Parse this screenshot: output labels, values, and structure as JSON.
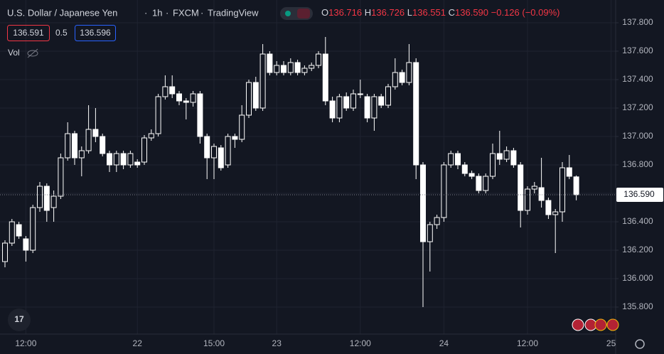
{
  "chart_data": {
    "type": "candlestick",
    "title": "U.S. Dollar / Japanese Yen",
    "interval": "1h",
    "source": "FXCM",
    "platform": "TradingView",
    "ohlc_header": [
      {
        "key": "O",
        "value": "136.716"
      },
      {
        "key": "H",
        "value": "136.726"
      },
      {
        "key": "L",
        "value": "136.551"
      },
      {
        "key": "C",
        "value": "136.590"
      }
    ],
    "change": "−0.126 (−0.09%)",
    "bid": "136.591",
    "spread": "0.5",
    "ask": "136.596",
    "volume_label": "Vol",
    "last_price": {
      "value": 136.59,
      "label": "136.590"
    },
    "categories": [
      null,
      null,
      null,
      "12:00",
      null,
      null,
      null,
      null,
      null,
      null,
      null,
      null,
      null,
      null,
      null,
      null,
      null,
      null,
      null,
      "22",
      null,
      null,
      null,
      null,
      null,
      null,
      null,
      null,
      null,
      null,
      "15:00",
      null,
      null,
      null,
      null,
      null,
      null,
      null,
      null,
      "23",
      null,
      null,
      null,
      null,
      null,
      null,
      null,
      null,
      null,
      null,
      null,
      "12:00",
      null,
      null,
      null,
      null,
      null,
      null,
      null,
      null,
      null,
      null,
      null,
      "24",
      null,
      null,
      null,
      null,
      null,
      null,
      null,
      null,
      null,
      null,
      null,
      "12:00",
      null,
      null,
      null,
      null,
      null,
      null,
      null,
      null,
      null,
      null,
      null,
      "25"
    ],
    "open": [
      136.12,
      136.25,
      136.38,
      136.28,
      136.2,
      136.5,
      136.65,
      136.5,
      136.58,
      136.85,
      137.02,
      136.85,
      136.9,
      137.05,
      137.0,
      136.88,
      136.8,
      136.88,
      136.8,
      136.82,
      136.82,
      136.99,
      137.02,
      137.28,
      137.35,
      137.3,
      137.25,
      137.24,
      137.3,
      137.0,
      136.85,
      136.92,
      136.8,
      137.0,
      136.98,
      137.15,
      137.38,
      137.2,
      137.58,
      137.45,
      137.5,
      137.45,
      137.52,
      137.45,
      137.48,
      137.5,
      137.58,
      137.25,
      137.13,
      137.28,
      137.2,
      137.3,
      137.28,
      137.13,
      137.28,
      137.22,
      137.35,
      137.45,
      137.38,
      137.52,
      136.8,
      136.26,
      136.38,
      136.43,
      136.8,
      136.88,
      136.8,
      136.74,
      136.72,
      136.62,
      136.72,
      136.88,
      136.84,
      136.9,
      136.8,
      136.48,
      136.63,
      136.64,
      136.55,
      136.45,
      136.47,
      136.78,
      136.716,
      null,
      null,
      null,
      null,
      null
    ],
    "high": [
      136.27,
      136.42,
      136.4,
      136.3,
      136.52,
      136.68,
      136.67,
      136.62,
      136.88,
      137.1,
      137.04,
      136.93,
      137.22,
      137.2,
      137.02,
      136.9,
      136.9,
      136.9,
      136.9,
      136.84,
      137.01,
      137.05,
      137.3,
      137.43,
      137.43,
      137.32,
      137.27,
      137.32,
      137.32,
      137.02,
      136.95,
      136.94,
      137.02,
      137.02,
      137.22,
      137.4,
      137.42,
      137.65,
      137.6,
      137.53,
      137.53,
      137.55,
      137.54,
      137.5,
      137.52,
      137.6,
      137.7,
      137.28,
      137.3,
      137.31,
      137.33,
      137.4,
      137.3,
      137.3,
      137.3,
      137.37,
      137.55,
      137.47,
      137.65,
      137.55,
      136.82,
      136.4,
      136.45,
      136.82,
      136.9,
      136.9,
      136.82,
      136.76,
      136.74,
      136.74,
      136.95,
      137.04,
      136.93,
      136.92,
      136.82,
      136.65,
      136.68,
      136.85,
      136.57,
      136.49,
      136.82,
      136.87,
      136.726,
      null,
      null,
      null,
      null,
      null
    ],
    "low": [
      136.08,
      136.23,
      136.28,
      136.12,
      136.18,
      136.47,
      136.4,
      136.4,
      136.56,
      136.83,
      136.8,
      136.72,
      136.88,
      136.96,
      136.86,
      136.75,
      136.75,
      136.77,
      136.78,
      136.78,
      136.8,
      136.97,
      137.0,
      137.26,
      137.27,
      137.22,
      137.12,
      137.21,
      136.95,
      136.7,
      136.7,
      136.76,
      136.78,
      136.92,
      136.96,
      137.13,
      137.18,
      137.18,
      137.43,
      137.43,
      137.43,
      137.43,
      137.43,
      137.43,
      137.46,
      137.48,
      137.22,
      137.1,
      137.1,
      137.18,
      137.18,
      137.27,
      137.1,
      137.04,
      137.2,
      137.2,
      137.33,
      137.36,
      137.36,
      136.7,
      135.8,
      136.05,
      136.35,
      136.4,
      136.78,
      136.77,
      136.72,
      136.7,
      136.6,
      136.6,
      136.7,
      136.8,
      136.82,
      136.78,
      136.36,
      136.45,
      136.6,
      136.5,
      136.42,
      136.18,
      136.4,
      136.7,
      136.551,
      null,
      null,
      null,
      null,
      null
    ],
    "close": [
      136.25,
      136.4,
      136.3,
      136.2,
      136.5,
      136.65,
      136.48,
      136.58,
      136.85,
      137.02,
      136.85,
      136.9,
      137.05,
      137.0,
      136.88,
      136.8,
      136.88,
      136.8,
      136.88,
      136.8,
      136.99,
      137.02,
      137.28,
      137.35,
      137.3,
      137.25,
      137.24,
      137.3,
      137.0,
      136.85,
      136.93,
      136.78,
      137.0,
      136.98,
      137.15,
      137.38,
      137.2,
      137.58,
      137.45,
      137.5,
      137.45,
      137.52,
      137.45,
      137.48,
      137.5,
      137.58,
      137.25,
      137.13,
      137.28,
      137.2,
      137.3,
      137.3,
      137.13,
      137.28,
      137.22,
      137.35,
      137.45,
      137.38,
      137.52,
      136.8,
      136.26,
      136.38,
      136.43,
      136.8,
      136.88,
      136.8,
      136.74,
      136.72,
      136.62,
      136.72,
      136.88,
      136.84,
      136.9,
      136.8,
      136.48,
      136.63,
      136.65,
      136.55,
      136.45,
      136.47,
      136.78,
      136.72,
      136.59,
      null,
      null,
      null,
      null,
      null
    ],
    "color": "#ffffff",
    "ylim": [
      135.61,
      137.96
    ],
    "yticks": [
      {
        "value": 135.8,
        "label": "135.800"
      },
      {
        "value": 136.0,
        "label": "136.000"
      },
      {
        "value": 136.2,
        "label": "136.200"
      },
      {
        "value": 136.4,
        "label": "136.400"
      },
      {
        "value": 136.6,
        "label": "136.600"
      },
      {
        "value": 136.8,
        "label": "136.800"
      },
      {
        "value": 137.0,
        "label": "137.000"
      },
      {
        "value": 137.2,
        "label": "137.200"
      },
      {
        "value": 137.4,
        "label": "137.400"
      },
      {
        "value": 137.6,
        "label": "137.600"
      },
      {
        "value": 137.8,
        "label": "137.800"
      }
    ],
    "grid": true
  }
}
